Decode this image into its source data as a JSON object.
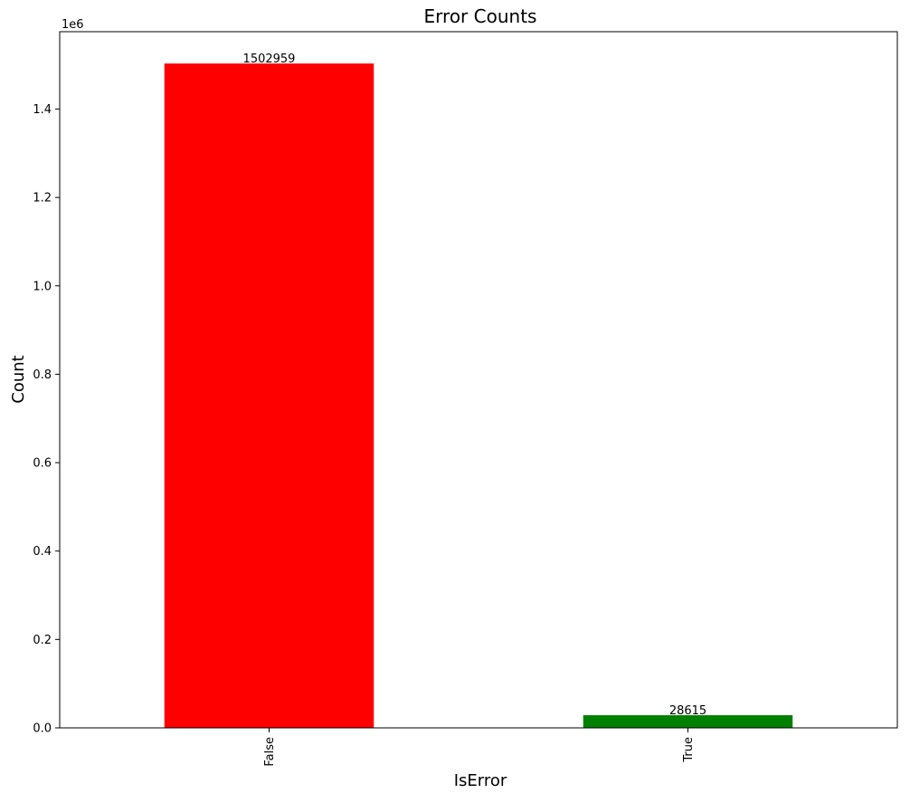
{
  "chart_data": {
    "type": "bar",
    "title": "Error Counts",
    "xlabel": "IsError",
    "ylabel": "Count",
    "categories": [
      "False",
      "True"
    ],
    "values": [
      1502959,
      28615
    ],
    "data_labels": [
      "1502959",
      "28615"
    ],
    "colors": [
      "#ff0000",
      "#008000"
    ],
    "ylim": [
      0,
      1575000
    ],
    "yticks": [
      0,
      200000,
      400000,
      600000,
      800000,
      1000000,
      1200000,
      1400000
    ],
    "ytick_labels": [
      "0.0",
      "0.2",
      "0.4",
      "0.6",
      "0.8",
      "1.0",
      "1.2",
      "1.4"
    ],
    "y_offset_text": "1e6",
    "legend": "none",
    "grid": false
  }
}
